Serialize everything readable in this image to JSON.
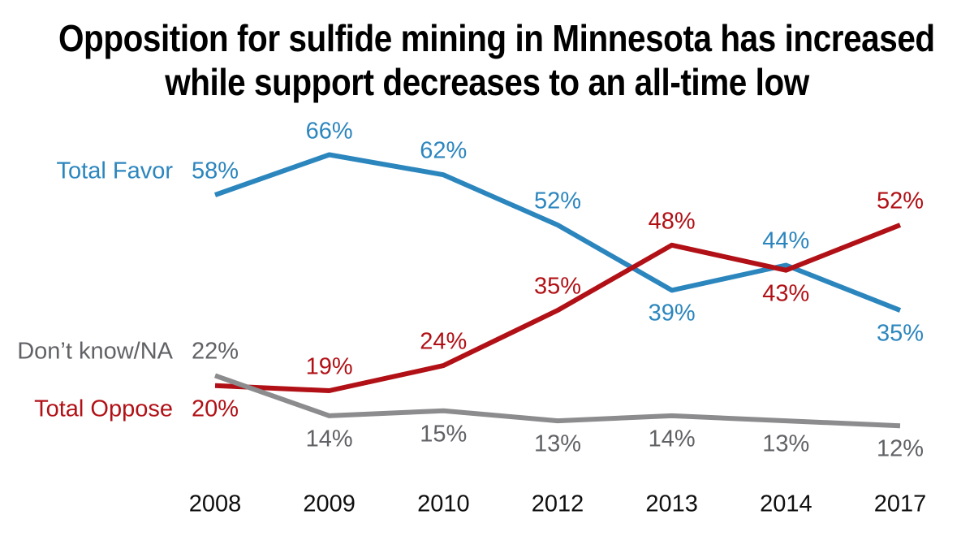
{
  "title": {
    "line1": "Opposition for sulfide mining in Minnesota has increased",
    "line2": "while support decreases to an all-time low"
  },
  "palette": {
    "title_text": "#000000",
    "axis_text": "#0f0f0f",
    "favor_blue": "#2C86BE",
    "oppose_red": "#B11116",
    "dontknow_line_gray": "#8C8C8E",
    "dontknow_text_gray": "#616266"
  },
  "chart_data": {
    "type": "line",
    "title": "Opposition for sulfide mining in Minnesota has increased while support decreases to an all-time low",
    "xlabel": "",
    "ylabel": "",
    "categories": [
      "2008",
      "2009",
      "2010",
      "2012",
      "2013",
      "2014",
      "2017"
    ],
    "ylim": [
      0,
      100
    ],
    "grid": false,
    "axes_visible": false,
    "legend_position": "inline-left",
    "value_format": "percent",
    "series": [
      {
        "key": "favor",
        "name": "Total Favor",
        "color": "#2C86BE",
        "label_color": "#2C86BE",
        "values": [
          58,
          66,
          62,
          52,
          39,
          44,
          35
        ],
        "labels": [
          "58%",
          "66%",
          "62%",
          "52%",
          "39%",
          "44%",
          "35%"
        ],
        "label_side": [
          "above",
          "above",
          "above",
          "above",
          "below",
          "above",
          "below"
        ]
      },
      {
        "key": "oppose",
        "name": "Total Oppose",
        "color": "#B11116",
        "label_color": "#B11116",
        "values": [
          20,
          19,
          24,
          35,
          48,
          43,
          52
        ],
        "labels": [
          "20%",
          "19%",
          "24%",
          "35%",
          "48%",
          "43%",
          "52%"
        ],
        "label_side": [
          "below",
          "above",
          "above",
          "above",
          "above",
          "below",
          "above"
        ]
      },
      {
        "key": "dontknow",
        "name": "Don’t know/NA",
        "color": "#8C8C8E",
        "label_color": "#616266",
        "values": [
          22,
          14,
          15,
          13,
          14,
          13,
          12
        ],
        "labels": [
          "22%",
          "14%",
          "15%",
          "13%",
          "14%",
          "13%",
          "12%"
        ],
        "label_side": [
          "above",
          "below",
          "below",
          "below",
          "below",
          "below",
          "below"
        ]
      }
    ]
  }
}
